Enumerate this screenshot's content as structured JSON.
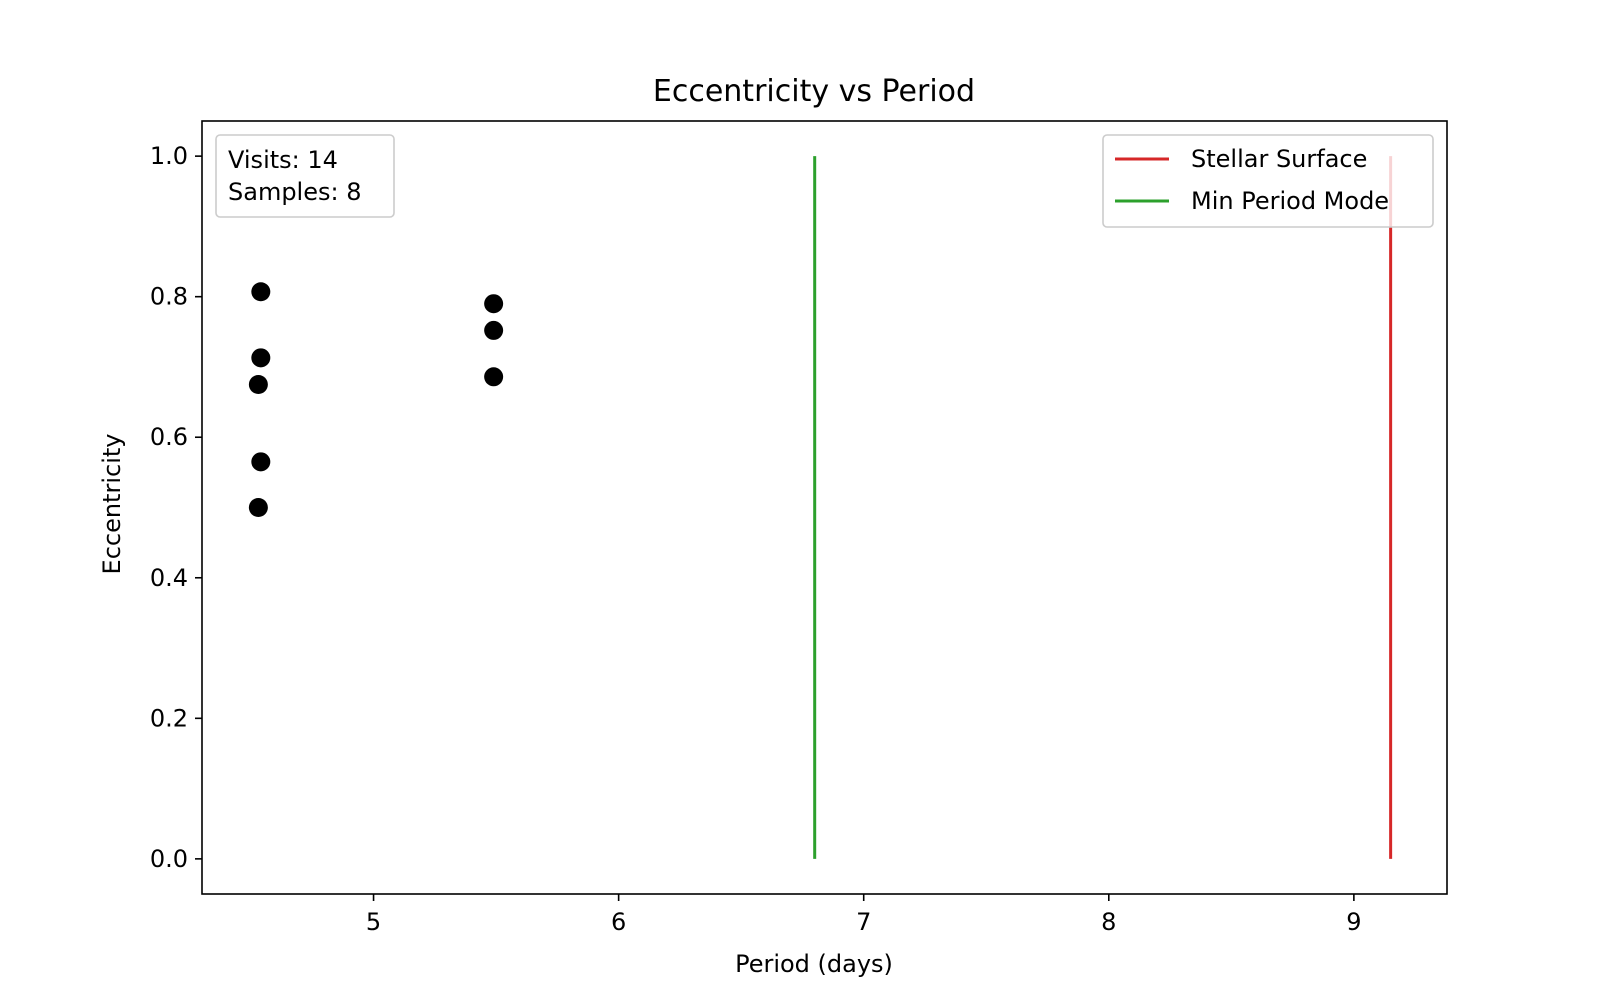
{
  "chart_data": {
    "type": "scatter",
    "title": "Eccentricity vs Period",
    "xlabel": "Period (days)",
    "ylabel": "Eccentricity",
    "xlim": [
      4.3,
      9.38
    ],
    "ylim": [
      -0.05,
      1.05
    ],
    "xticks": [
      5,
      6,
      7,
      8,
      9
    ],
    "yticks": [
      0.0,
      0.2,
      0.4,
      0.6,
      0.8,
      1.0
    ],
    "grid": false,
    "points": [
      {
        "x": 4.54,
        "y": 0.807
      },
      {
        "x": 4.54,
        "y": 0.713
      },
      {
        "x": 4.53,
        "y": 0.675
      },
      {
        "x": 4.54,
        "y": 0.565
      },
      {
        "x": 4.53,
        "y": 0.5
      },
      {
        "x": 5.49,
        "y": 0.79
      },
      {
        "x": 5.49,
        "y": 0.752
      },
      {
        "x": 5.49,
        "y": 0.686
      }
    ],
    "point_color": "#000000",
    "vlines": [
      {
        "name": "Stellar Surface",
        "x": 9.15,
        "ymin": 0.0,
        "ymax": 1.0,
        "color": "#d62728"
      },
      {
        "name": "Min Period Mode",
        "x": 6.8,
        "ymin": 0.0,
        "ymax": 1.0,
        "color": "#2ca02c"
      }
    ],
    "legend_placement": "top-right",
    "info_box": {
      "placement": "top-left",
      "lines": [
        "Visits: 14",
        "Samples: 8"
      ]
    }
  }
}
